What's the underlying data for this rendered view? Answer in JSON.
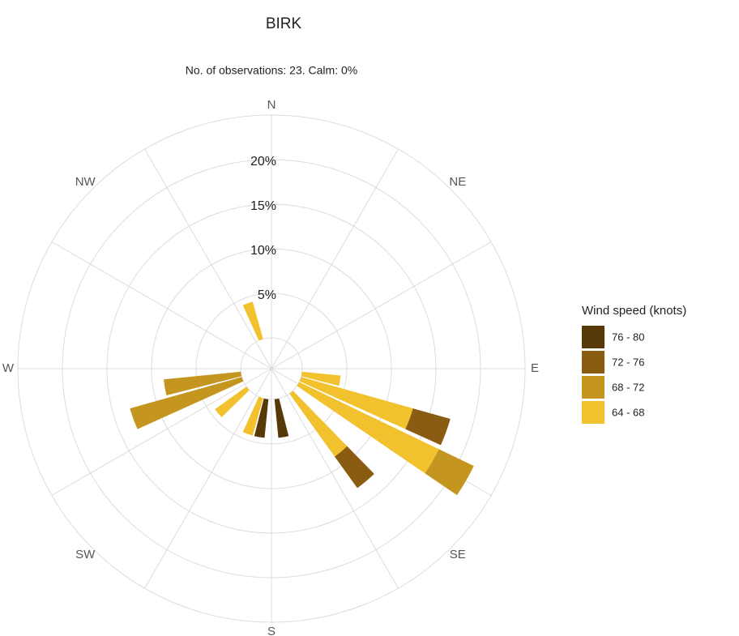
{
  "chart_data": {
    "type": "windrose",
    "title": "BIRK",
    "subtitle": "No. of observations: 23. Calm: 0%",
    "directions": [
      "N",
      "NE",
      "E",
      "SE",
      "S",
      "SW",
      "W",
      "NW"
    ],
    "x": [
      100,
      110,
      120,
      140,
      170,
      190,
      200,
      230,
      250,
      260,
      340
    ],
    "series": [
      {
        "name": "76 - 80",
        "color": "#573908",
        "values": [
          0,
          0,
          0,
          0,
          4.35,
          4.35,
          0,
          0,
          0,
          0,
          0
        ]
      },
      {
        "name": "72 - 76",
        "color": "#8a5c12",
        "values": [
          0,
          4.35,
          0,
          4.35,
          0,
          0,
          0,
          0,
          0,
          0,
          0
        ]
      },
      {
        "name": "68 - 72",
        "color": "#c4961f",
        "values": [
          0,
          0,
          4.35,
          0,
          0,
          0,
          0,
          0,
          13.04,
          8.7,
          0
        ]
      },
      {
        "name": "64 - 68",
        "color": "#f1c12e",
        "values": [
          4.35,
          13.04,
          17.39,
          8.7,
          0,
          0,
          4.35,
          4.35,
          0,
          0,
          4.35
        ]
      }
    ],
    "legend_title": "Wind speed (knots)",
    "ylim": [
      0,
      25
    ],
    "yticks": [
      {
        "value": 5,
        "label": "5%"
      },
      {
        "value": 10,
        "label": "10%"
      },
      {
        "value": 15,
        "label": "15%"
      },
      {
        "value": 20,
        "label": "20%"
      }
    ],
    "grid": true
  }
}
